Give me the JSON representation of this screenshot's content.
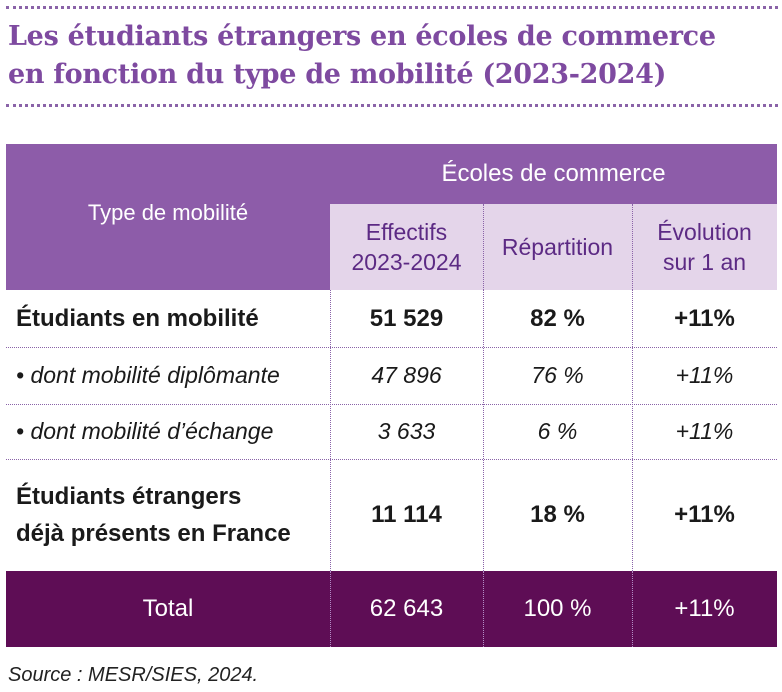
{
  "title": {
    "line1": "Les étudiants étrangers en écoles de commerce",
    "line2": "en fonction du type de mobilité (2023-2024)"
  },
  "header": {
    "type_label": "Type de mobilité",
    "group_label": "Écoles de commerce",
    "col_effectifs_1": "Effectifs",
    "col_effectifs_2": "2023-2024",
    "col_repartition": "Répartition",
    "col_evolution_1": "Évolution",
    "col_evolution_2": "sur 1 an"
  },
  "rows": [
    {
      "label": "Étudiants en mobilité",
      "effectifs": "51 529",
      "repartition": "82 %",
      "evolution": "+11%"
    },
    {
      "label": "• dont mobilité diplômante",
      "effectifs": "47 896",
      "repartition": "76 %",
      "evolution": "+11%"
    },
    {
      "label": "• dont mobilité d’échange",
      "effectifs": "3 633",
      "repartition": "6 %",
      "evolution": "+11%"
    },
    {
      "label_1": "Étudiants étrangers",
      "label_2": "déjà présents en France",
      "effectifs": "11 114",
      "repartition": "18 %",
      "evolution": "+11%"
    }
  ],
  "total": {
    "label": "Total",
    "effectifs": "62 643",
    "repartition": "100 %",
    "evolution": "+11%"
  },
  "source": "Source : MESR/SIES, 2024.",
  "colors": {
    "title": "#7e4aa0",
    "header": "#8d5ca9",
    "subheader": "#e4d5ea",
    "total": "#5e0d55"
  }
}
